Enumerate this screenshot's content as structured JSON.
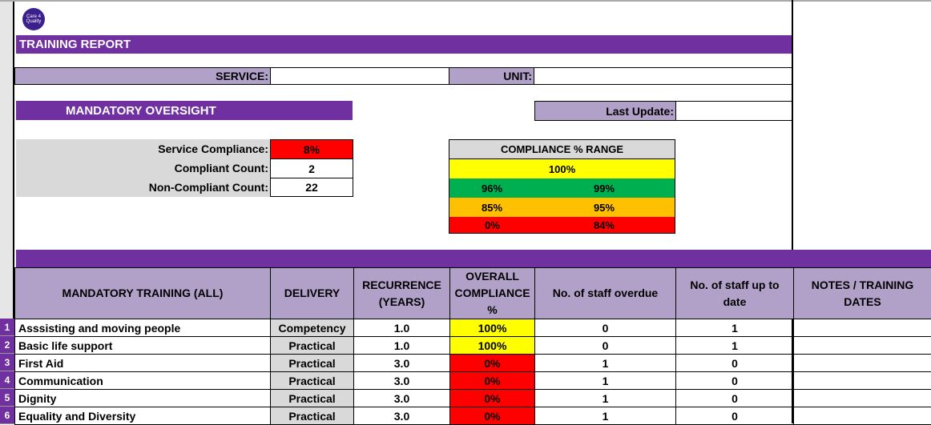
{
  "logo_text": "Care 4 Quality",
  "title": "TRAINING REPORT",
  "service_label": "SERVICE:",
  "service_value": "",
  "unit_label": "UNIT:",
  "unit_value": "",
  "oversight_title": "MANDATORY OVERSIGHT",
  "last_update_label": "Last Update:",
  "last_update_value": "",
  "summary": [
    {
      "label": "Service Compliance:",
      "value": "8%"
    },
    {
      "label": "Compliant Count:",
      "value": "2"
    },
    {
      "label": "Non-Compliant Count:",
      "value": "22"
    }
  ],
  "range": {
    "title": "COMPLIANCE % RANGE",
    "rows": [
      {
        "from": "100%",
        "to": "",
        "color": "#ffff00"
      },
      {
        "from": "96%",
        "to": "99%",
        "color": "#00b050"
      },
      {
        "from": "85%",
        "to": "95%",
        "color": "#ffc000"
      },
      {
        "from": "0%",
        "to": "84%",
        "color": "#ff0000"
      }
    ]
  },
  "headers": [
    "MANDATORY TRAINING (ALL)",
    "DELIVERY",
    "RECURRENCE (YEARS)",
    "OVERALL COMPLIANCE %",
    "No. of staff overdue",
    "No. of staff up to date",
    "NOTES / TRAINING DATES"
  ],
  "rows": [
    {
      "n": "1",
      "name": "Asssisting and moving people",
      "delivery": "Competency",
      "rec": "1.0",
      "comp": "100%",
      "overdue": "0",
      "uptodate": "1",
      "notes": "",
      "color": "#ffff00"
    },
    {
      "n": "2",
      "name": "Basic life support",
      "delivery": "Practical",
      "rec": "1.0",
      "comp": "100%",
      "overdue": "0",
      "uptodate": "1",
      "notes": "",
      "color": "#ffff00"
    },
    {
      "n": "3",
      "name": "First Aid",
      "delivery": "Practical",
      "rec": "3.0",
      "comp": "0%",
      "overdue": "1",
      "uptodate": "0",
      "notes": "",
      "color": "#ff0000"
    },
    {
      "n": "4",
      "name": "Communication",
      "delivery": "Practical",
      "rec": "3.0",
      "comp": "0%",
      "overdue": "1",
      "uptodate": "0",
      "notes": "",
      "color": "#ff0000"
    },
    {
      "n": "5",
      "name": "Dignity",
      "delivery": "Practical",
      "rec": "3.0",
      "comp": "0%",
      "overdue": "1",
      "uptodate": "0",
      "notes": "",
      "color": "#ff0000"
    },
    {
      "n": "6",
      "name": "Equality and Diversity",
      "delivery": "Practical",
      "rec": "3.0",
      "comp": "0%",
      "overdue": "1",
      "uptodate": "0",
      "notes": "",
      "color": "#ff0000"
    }
  ]
}
